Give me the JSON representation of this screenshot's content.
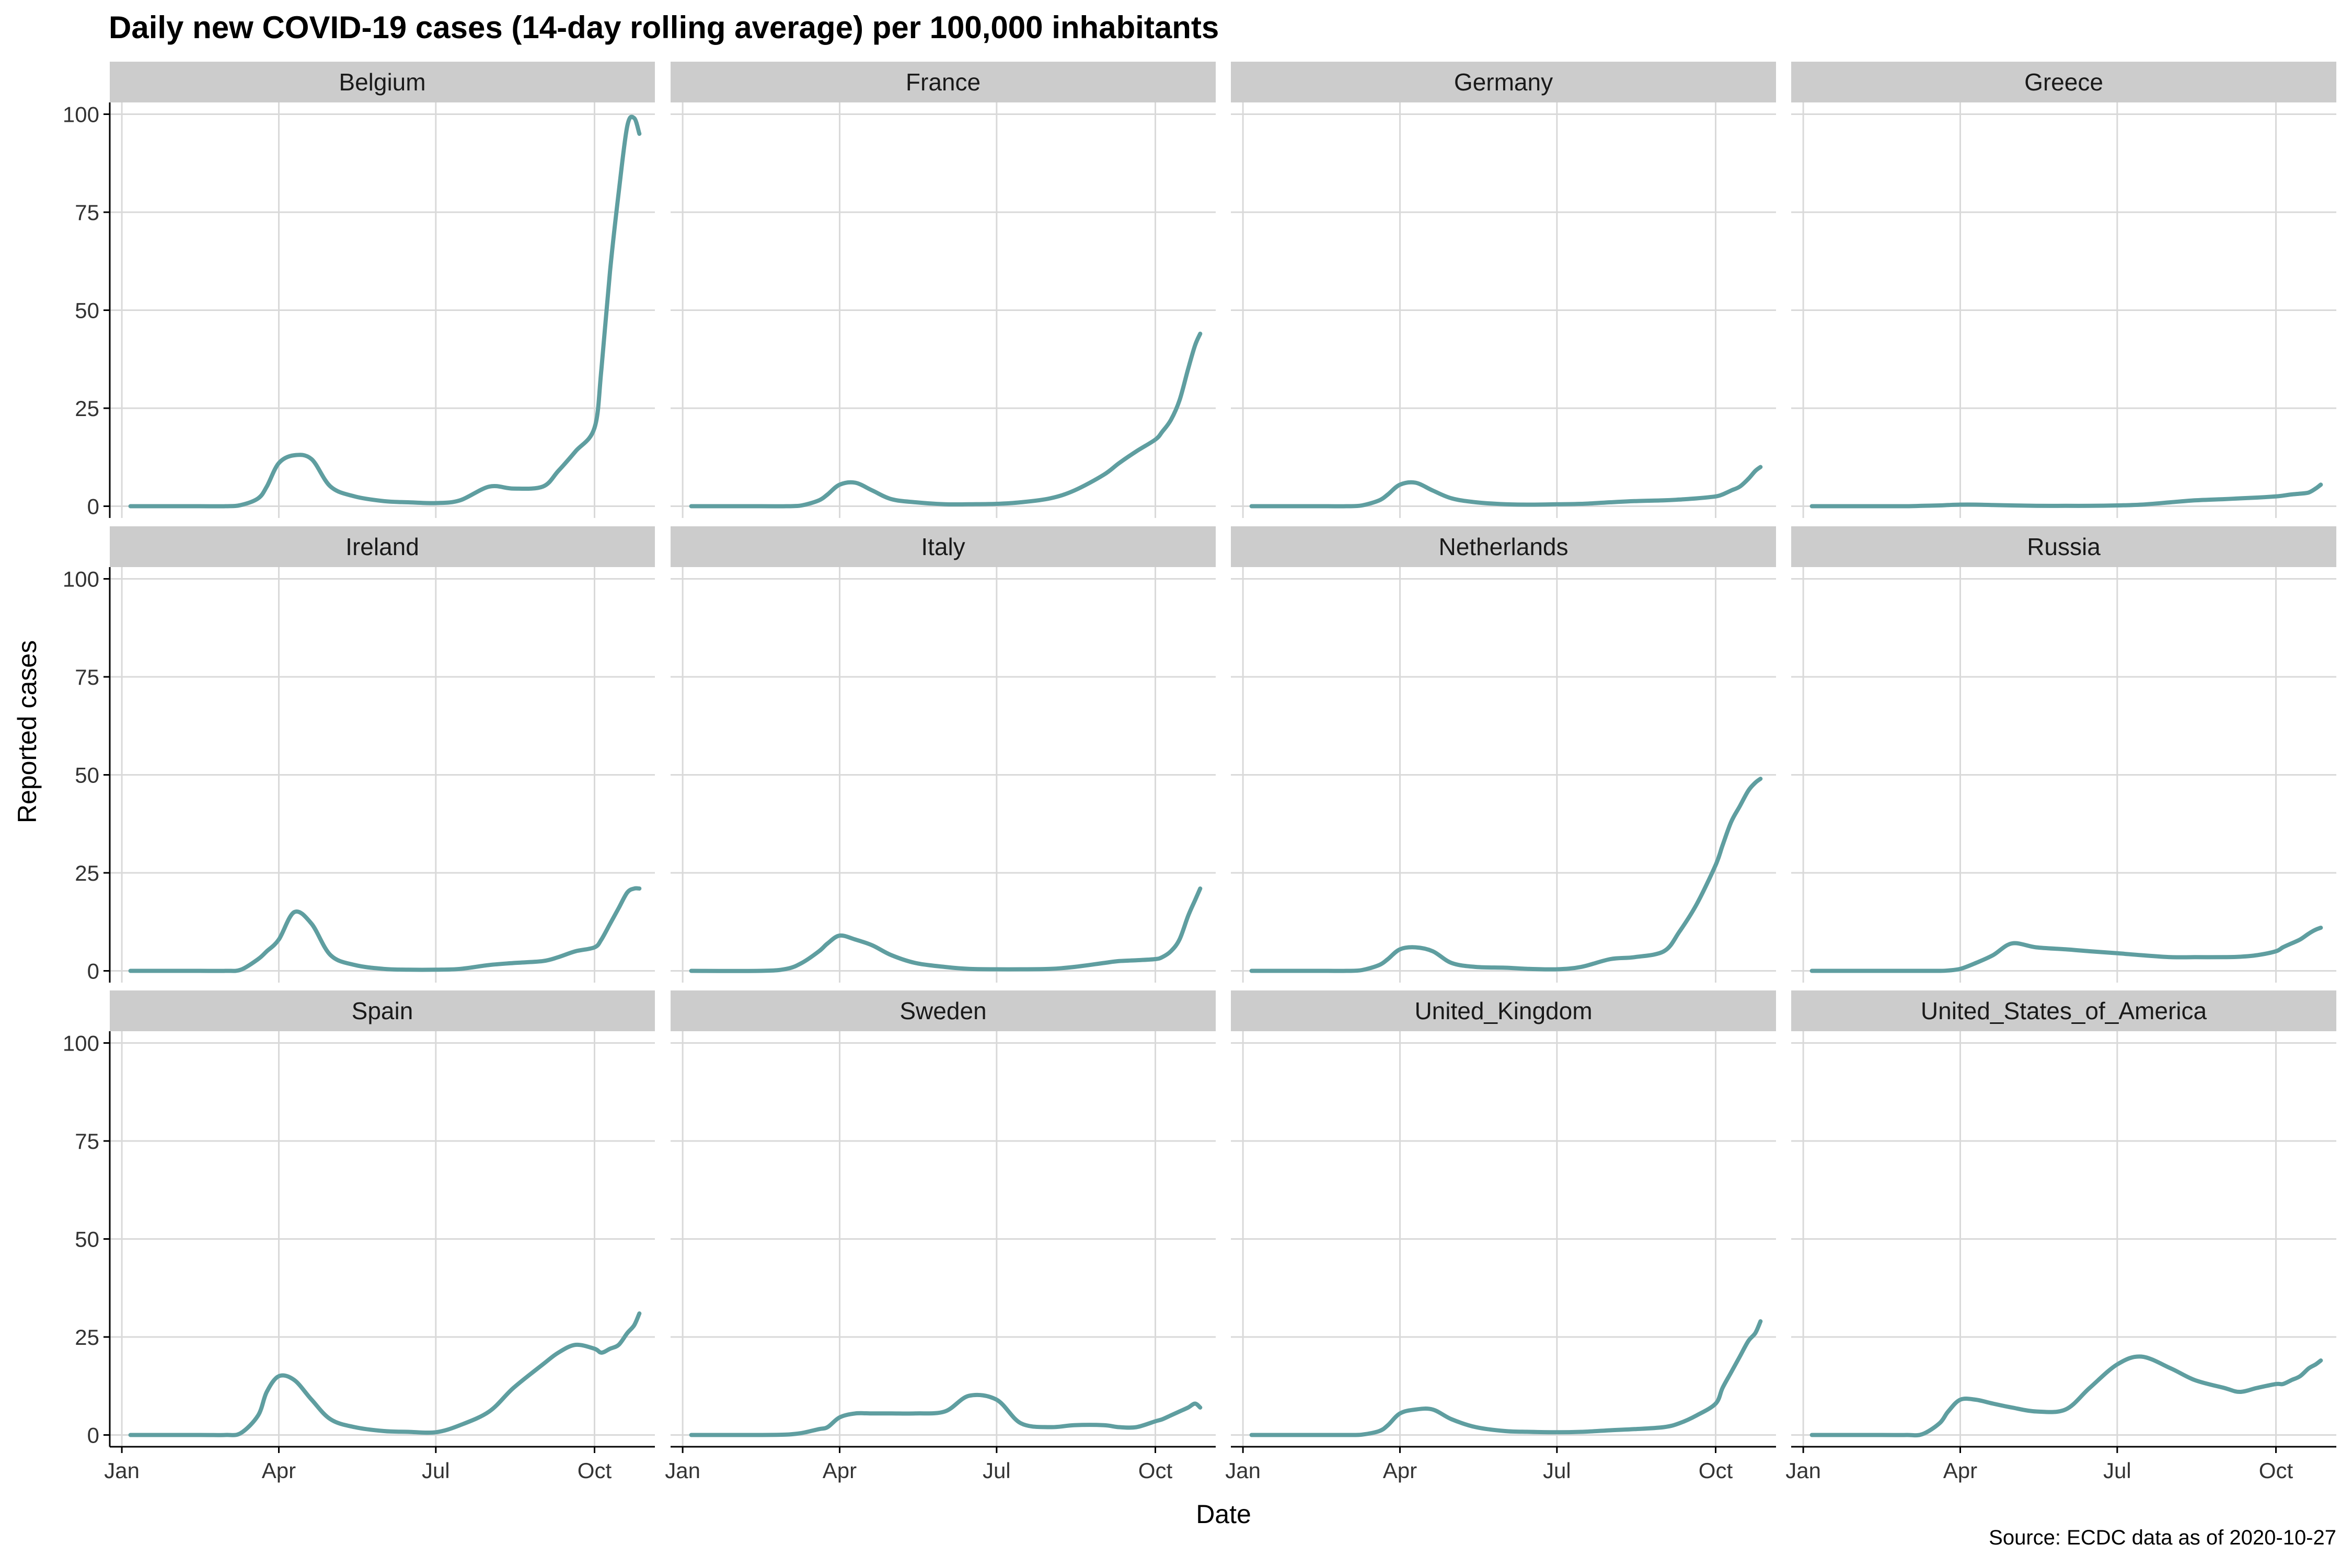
{
  "header": {
    "title": "Daily new COVID-19 cases (14-day rolling average) per 100,000 inhabitants"
  },
  "axes": {
    "ylabel": "Reported cases",
    "xlabel": "Date",
    "y_ticks": [
      "0",
      "25",
      "50",
      "75",
      "100"
    ],
    "x_ticks": [
      "Jan",
      "Apr",
      "Jul",
      "Oct"
    ]
  },
  "footer": {
    "source": "Source: ECDC data as of 2020-10-27"
  },
  "colors": {
    "line": "#5f9ea0",
    "strip": "#cccccc",
    "grid": "#d9d9d9",
    "axis": "#000000"
  },
  "chart_data": {
    "type": "line",
    "facet_layout": {
      "rows": 3,
      "cols": 4
    },
    "x_type": "date",
    "xlim": [
      "2019-12-25",
      "2020-11-05"
    ],
    "x_ticks": [
      "2020-01-01",
      "2020-04-01",
      "2020-07-01",
      "2020-10-01"
    ],
    "ylim": [
      -3,
      103
    ],
    "y_ticks": [
      0,
      25,
      50,
      75,
      100
    ],
    "grid": true,
    "x_dates": [
      "2020-01-06",
      "2020-02-15",
      "2020-03-01",
      "2020-03-10",
      "2020-03-20",
      "2020-03-25",
      "2020-04-01",
      "2020-04-10",
      "2020-04-20",
      "2020-05-01",
      "2020-05-15",
      "2020-06-01",
      "2020-06-15",
      "2020-07-01",
      "2020-07-15",
      "2020-08-01",
      "2020-08-15",
      "2020-09-01",
      "2020-09-10",
      "2020-09-20",
      "2020-10-01",
      "2020-10-05",
      "2020-10-10",
      "2020-10-15",
      "2020-10-20",
      "2020-10-24",
      "2020-10-27"
    ],
    "series": [
      {
        "name": "Belgium",
        "values": [
          0,
          0,
          0,
          0.3,
          2,
          5,
          11,
          13,
          12,
          5,
          2.5,
          1.3,
          1,
          0.8,
          1.5,
          5,
          4.5,
          5,
          9,
          14,
          20,
          35,
          60,
          80,
          97,
          99,
          95
        ]
      },
      {
        "name": "France",
        "values": [
          0,
          0,
          0,
          0.2,
          1.5,
          3,
          5.5,
          6,
          4,
          1.8,
          1,
          0.5,
          0.5,
          0.6,
          1,
          2,
          4,
          8,
          11,
          14,
          17,
          19,
          22,
          27,
          35,
          41,
          44
        ]
      },
      {
        "name": "Germany",
        "values": [
          0,
          0,
          0,
          0.2,
          1.5,
          3,
          5.5,
          6,
          4,
          2,
          1,
          0.5,
          0.4,
          0.5,
          0.6,
          1,
          1.3,
          1.5,
          1.7,
          2,
          2.5,
          3,
          4,
          5,
          7,
          9,
          10
        ]
      },
      {
        "name": "Greece",
        "values": [
          0,
          0,
          0,
          0.1,
          0.2,
          0.3,
          0.4,
          0.4,
          0.3,
          0.2,
          0.1,
          0.1,
          0.1,
          0.2,
          0.4,
          1,
          1.5,
          1.8,
          2,
          2.2,
          2.5,
          2.7,
          3,
          3.2,
          3.5,
          4.5,
          5.5
        ]
      },
      {
        "name": "Ireland",
        "values": [
          0,
          0,
          0,
          0.3,
          3,
          5,
          8,
          15,
          12,
          4,
          1.5,
          0.5,
          0.3,
          0.3,
          0.5,
          1.5,
          2,
          2.5,
          3.5,
          5,
          6,
          8,
          12,
          16,
          20,
          21,
          21
        ]
      },
      {
        "name": "Italy",
        "values": [
          0,
          0,
          0.5,
          2,
          5,
          7,
          9,
          8,
          6.5,
          4,
          2,
          1,
          0.5,
          0.4,
          0.4,
          0.5,
          1,
          2,
          2.5,
          2.7,
          3,
          3.5,
          5,
          8,
          14,
          18,
          21
        ]
      },
      {
        "name": "Netherlands",
        "values": [
          0,
          0,
          0,
          0.2,
          1.5,
          3,
          5.5,
          6,
          5,
          2,
          1,
          0.8,
          0.5,
          0.4,
          1,
          3,
          3.5,
          5,
          10,
          17,
          27,
          32,
          38,
          42,
          46,
          48,
          49
        ]
      },
      {
        "name": "Russia",
        "values": [
          0,
          0,
          0,
          0,
          0,
          0.1,
          0.5,
          2,
          4,
          7,
          6,
          5.5,
          5,
          4.5,
          4,
          3.5,
          3.5,
          3.5,
          3.6,
          4,
          5,
          6,
          7,
          8,
          9.5,
          10.5,
          11
        ]
      },
      {
        "name": "Spain",
        "values": [
          0,
          0,
          0,
          0.5,
          5,
          11,
          15,
          14,
          9,
          4,
          2,
          1,
          0.8,
          0.7,
          2.5,
          6,
          12,
          18,
          21,
          23,
          22,
          21,
          22,
          23,
          26,
          28,
          31
        ]
      },
      {
        "name": "Sweden",
        "values": [
          0,
          0,
          0.1,
          0.5,
          1.5,
          2,
          4.5,
          5.5,
          5.5,
          5.5,
          5.5,
          6,
          10,
          9,
          3,
          2,
          2.5,
          2.5,
          2,
          2,
          3.5,
          4,
          5,
          6,
          7,
          8,
          7
        ]
      },
      {
        "name": "United_Kingdom",
        "values": [
          0,
          0,
          0,
          0.1,
          1,
          2.5,
          5.5,
          6.5,
          6.5,
          4,
          2,
          1,
          0.8,
          0.7,
          0.8,
          1.2,
          1.5,
          2,
          3,
          5,
          8,
          12,
          16,
          20,
          24,
          26,
          29
        ]
      },
      {
        "name": "United_States_of_America",
        "values": [
          0,
          0,
          0,
          0.2,
          3,
          6,
          9,
          9,
          8,
          7,
          6,
          6.5,
          12,
          18,
          20,
          17,
          14,
          12,
          11,
          12,
          13,
          13,
          14,
          15,
          17,
          18,
          19
        ]
      }
    ]
  }
}
